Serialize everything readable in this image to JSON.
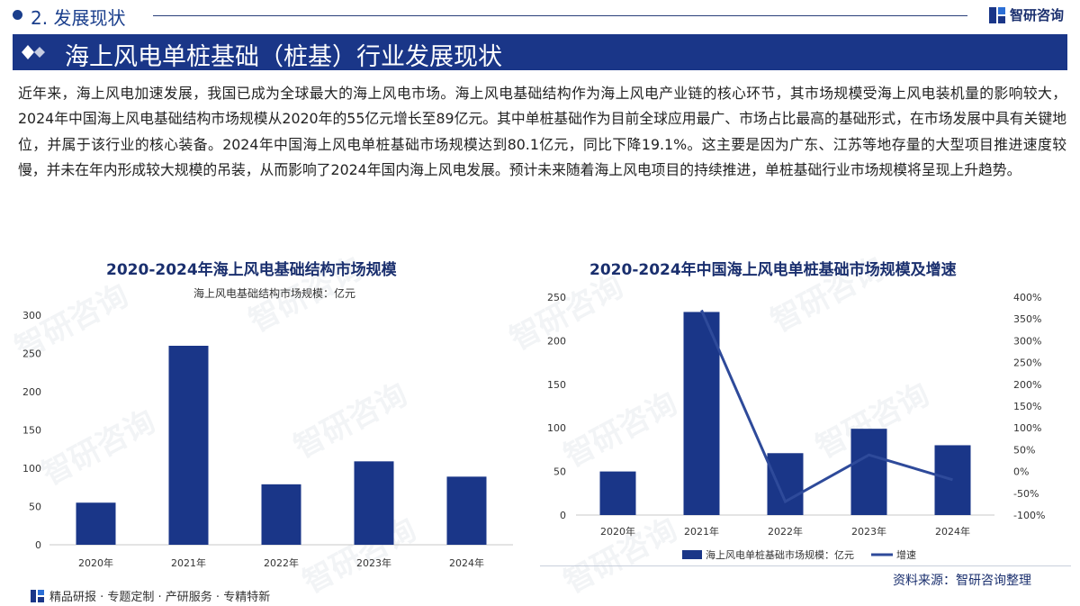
{
  "header": {
    "section": "2. 发展现状",
    "brand": "智研咨询",
    "title": "海上风电单桩基础（桩基）行业发展现状"
  },
  "paragraph": "近年来，海上风电加速发展，我国已成为全球最大的海上风电市场。海上风电基础结构作为海上风电产业链的核心环节，其市场规模受海上风电装机量的影响较大，2024年中国海上风电基础结构市场规模从2020年的55亿元增长至89亿元。其中单桩基础作为目前全球应用最广、市场占比最高的基础形式，在市场发展中具有关键地位，并属于该行业的核心装备。2024年中国海上风电单桩基础市场规模达到80.1亿元，同比下降19.1%。这主要是因为广东、江苏等地存量的大型项目推进速度较慢，并未在年内形成较大规模的吊装，从而影响了2024年国内海上风电发展。预计未来随着海上风电项目的持续推进，单桩基础行业市场规模将呈现上升趋势。",
  "watermark": "智研咨询",
  "colors": {
    "navy": "#1a3688",
    "bar": "#1a3688",
    "line": "#2e4a9a"
  },
  "chart_data": [
    {
      "type": "bar",
      "title": "2020-2024年海上风电基础结构市场规模",
      "series_label": "海上风电基础结构市场规模：亿元",
      "categories": [
        "2020年",
        "2021年",
        "2022年",
        "2023年",
        "2024年"
      ],
      "values": [
        55,
        260,
        79,
        109,
        89
      ],
      "ylim": [
        0,
        300
      ],
      "yticks": [
        0,
        50,
        100,
        150,
        200,
        250,
        300
      ]
    },
    {
      "type": "bar+line",
      "title": "2020-2024年中国海上风电单桩基础市场规模及增速",
      "categories": [
        "2020年",
        "2021年",
        "2022年",
        "2023年",
        "2024年"
      ],
      "series": [
        {
          "name": "海上风电单桩基础市场规模：亿元",
          "type": "bar",
          "axis": "left",
          "values": [
            50,
            233,
            71,
            99,
            80.1
          ]
        },
        {
          "name": "增速",
          "type": "line",
          "axis": "right",
          "values": [
            null,
            370,
            -69,
            38,
            -19.1
          ]
        }
      ],
      "ylim_left": [
        0,
        250
      ],
      "yticks_left": [
        0,
        50,
        100,
        150,
        200,
        250
      ],
      "ylim_right": [
        -100,
        400
      ],
      "yticks_right": [
        "-100%",
        "-50%",
        "0%",
        "50%",
        "100%",
        "150%",
        "200%",
        "250%",
        "300%",
        "350%",
        "400%"
      ]
    }
  ],
  "source": "资料来源：智研咨询整理",
  "footer": "精品研报 · 专题定制 · 产研服务 · 专精特新"
}
